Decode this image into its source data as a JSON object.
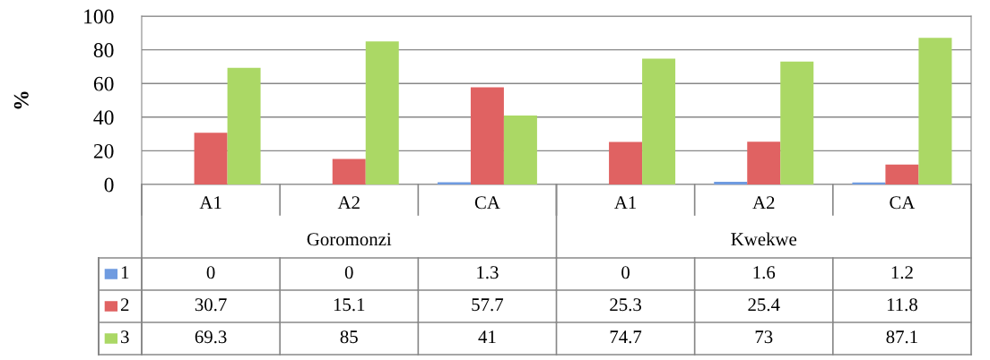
{
  "chart_data": {
    "type": "bar",
    "ylabel": "%",
    "categories": [
      "A1",
      "A2",
      "CA",
      "A1",
      "A2",
      "CA"
    ],
    "annotations": [
      "Goromonzi",
      "Kwekwe"
    ],
    "series": [
      {
        "name": "1",
        "color": "#6f9be0",
        "values": [
          0,
          0,
          1.3,
          0,
          1.6,
          1.2
        ]
      },
      {
        "name": "2",
        "color": "#e06262",
        "values": [
          30.7,
          15.1,
          57.7,
          25.3,
          25.4,
          11.8
        ]
      },
      {
        "name": "3",
        "color": "#abd865",
        "values": [
          69.3,
          85,
          41,
          74.7,
          73,
          87.1
        ]
      }
    ],
    "ylim": [
      0,
      100
    ],
    "yticks": [
      0,
      20,
      40,
      60,
      80,
      100
    ],
    "grid": "y",
    "data_labels": true,
    "legend": "bottom left"
  }
}
